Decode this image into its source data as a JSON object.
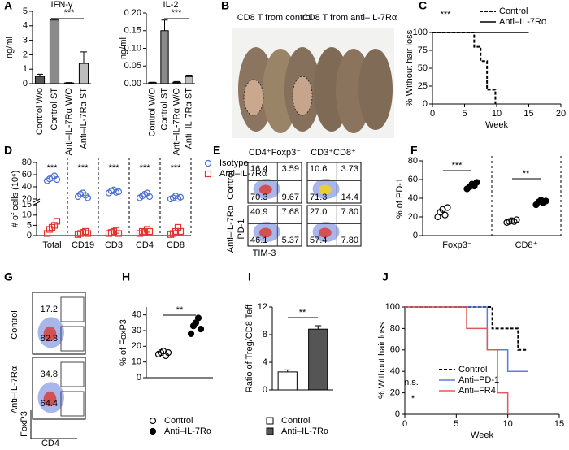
{
  "chart_data": [
    {
      "type": "bar",
      "panel": "A",
      "title": "IFN-γ",
      "ylabel": "ng/ml",
      "categories": [
        "Control W/o",
        "Control ST",
        "Anti–IL-7Rα W/O",
        "Anti–IL-7Rα ST"
      ],
      "values": [
        0.5,
        4.4,
        0.05,
        1.4
      ],
      "errors": [
        0.15,
        0.1,
        0.03,
        0.8
      ],
      "colors": [
        "#555555",
        "#8a8a8a",
        "#333333",
        "#bdbdbd"
      ],
      "ylim": [
        0,
        5
      ],
      "yticks": [
        0,
        1,
        2,
        3,
        4,
        5
      ],
      "annotations": [
        "***"
      ]
    },
    {
      "type": "bar",
      "title": "IL-2",
      "ylabel": "ng/ml",
      "categories": [
        "Control W/O",
        "Control ST",
        "Anti–IL-7Rα W/O",
        "Anti–IL-7Rα ST"
      ],
      "values": [
        0.003,
        0.15,
        0.004,
        0.02
      ],
      "errors": [
        0.001,
        0.03,
        0.002,
        0.004
      ],
      "colors": [
        "#555555",
        "#8a8a8a",
        "#333333",
        "#bdbdbd"
      ],
      "ylim": [
        0,
        0.2
      ],
      "yticks": [
        {
          "value": 0,
          "label": "0.00"
        },
        {
          "value": 0.05,
          "label": "0.05"
        },
        {
          "value": 0.1,
          "label": "0.10"
        },
        {
          "value": 0.15,
          "label": "0.15"
        },
        {
          "value": 0.2,
          "label": "0.20"
        }
      ],
      "annotations": [
        "***"
      ]
    },
    {
      "type": "line",
      "panel": "C",
      "ylabel": "% Without hair loss",
      "xlabel": "Week",
      "xlim": [
        0,
        20
      ],
      "xticks": [
        0,
        5,
        10,
        15,
        20
      ],
      "ylim": [
        0,
        100
      ],
      "yticks": [
        0,
        25,
        50,
        75,
        100
      ],
      "series": [
        {
          "name": "Control",
          "color": "#000000",
          "dash": true,
          "x": [
            0,
            6.5,
            7.5,
            8.5,
            9.8
          ],
          "values": [
            100,
            80,
            60,
            20,
            0
          ]
        },
        {
          "name": "Anti–IL-7Rα",
          "color": "#000000",
          "dash": false,
          "x": [
            0,
            15
          ],
          "values": [
            100,
            100
          ]
        }
      ],
      "annotations": [
        "***"
      ],
      "legend": "upper right"
    },
    {
      "type": "dot",
      "panel": "D",
      "ylabel": "# of cells (10⁶)",
      "categories": [
        "Total",
        "CD19",
        "CD3",
        "CD4",
        "CD8"
      ],
      "ylim": [
        0,
        80
      ],
      "ybreak": [
        15,
        20
      ],
      "yticks": [
        0,
        5,
        10,
        15,
        20,
        40,
        60,
        80
      ],
      "series": [
        {
          "name": "Isotype",
          "color": "#4a6fd0",
          "marker": "circle",
          "filled": false,
          "values": [
            [
              50,
              53,
              55,
              58,
              52
            ],
            [
              24,
              28,
              30,
              26,
              22
            ],
            [
              30,
              33,
              35,
              31,
              32
            ],
            [
              22,
              25,
              28,
              30,
              24
            ],
            [
              20,
              22,
              25,
              21,
              23
            ]
          ]
        },
        {
          "name": "Anti–IL-7Rα",
          "color": "#e0342c",
          "marker": "square",
          "filled": false,
          "values": [
            [
              1,
              3,
              4,
              5,
              7
            ],
            [
              0.5,
              1,
              1.5,
              2,
              1
            ],
            [
              1,
              1.5,
              2,
              2.5,
              1
            ],
            [
              1,
              2,
              1.5,
              3,
              2
            ],
            [
              0.5,
              1,
              2,
              4,
              2
            ]
          ]
        }
      ],
      "annotations": [
        "***",
        "***",
        "***",
        "***",
        "***"
      ],
      "legend": "outside right"
    },
    {
      "type": "dot",
      "panel": "F",
      "ylabel": "% of PD-1",
      "categories": [
        "Foxp3⁻",
        "CD8⁺"
      ],
      "ylim": [
        0,
        80
      ],
      "yticks": [
        0,
        20,
        40,
        60,
        80
      ],
      "series": [
        {
          "color": "#000000",
          "marker": "circle",
          "filled": false,
          "values": [
            [
              20,
              25,
              28,
              22,
              30
            ],
            [
              14,
              15,
              16,
              15,
              17
            ]
          ]
        },
        {
          "color": "#000000",
          "marker": "circle",
          "filled": true,
          "values": [
            [
              50,
              52,
              55,
              53,
              57
            ],
            [
              33,
              36,
              38,
              35,
              37
            ]
          ]
        }
      ],
      "annotations": [
        "***",
        "**"
      ]
    },
    {
      "type": "dot",
      "panel": "H",
      "ylabel": "% of FoxP3",
      "ylim": [
        0,
        45
      ],
      "yticks": [
        0,
        10,
        20,
        30,
        40
      ],
      "series": [
        {
          "name": "Control",
          "color": "#000000",
          "marker": "circle",
          "filled": false,
          "values": [
            [
              15,
              16,
              17,
              14,
              16
            ]
          ]
        },
        {
          "name": "Anti–IL-7Rα",
          "color": "#000000",
          "marker": "circle",
          "filled": true,
          "values": [
            [
              28,
              33,
              35,
              38,
              31
            ]
          ]
        }
      ],
      "annotations": [
        "**"
      ],
      "legend": "below"
    },
    {
      "type": "bar",
      "panel": "I",
      "ylabel": "Ratio of Treg/CD8 Teff",
      "series": [
        {
          "name": "Control",
          "color": "#ffffff",
          "values": [
            2.6
          ],
          "errors": [
            0.3
          ]
        },
        {
          "name": "Anti–IL-7Rα",
          "color": "#555555",
          "values": [
            8.8
          ],
          "errors": [
            0.5
          ]
        }
      ],
      "ylim": [
        0,
        12
      ],
      "yticks": [
        0,
        4,
        8,
        12
      ],
      "annotations": [
        "**"
      ],
      "legend": "below"
    },
    {
      "type": "line",
      "panel": "J",
      "ylabel": "% Without hair loss",
      "xlabel": "Week",
      "xlim": [
        0,
        15
      ],
      "xticks": [
        0,
        5,
        10,
        15
      ],
      "ylim": [
        0,
        100
      ],
      "yticks": [
        0,
        20,
        40,
        60,
        80,
        100
      ],
      "series": [
        {
          "name": "Control",
          "color": "#000000",
          "dash": true,
          "x": [
            0,
            8.5,
            11,
            12
          ],
          "values": [
            100,
            80,
            60,
            60
          ]
        },
        {
          "name": "Anti–PD-1",
          "color": "#5b7fd6",
          "dash": false,
          "x": [
            0,
            8,
            10,
            12
          ],
          "values": [
            100,
            60,
            40,
            40
          ]
        },
        {
          "name": "Anti–FR4",
          "color": "#e05a5a",
          "dash": false,
          "x": [
            0,
            6,
            8,
            9,
            10
          ],
          "values": [
            100,
            80,
            60,
            20,
            0
          ]
        }
      ],
      "annotations": [
        "n.s.",
        "*"
      ],
      "legend": "lower left"
    }
  ],
  "photo": {
    "panel": "B",
    "labels": [
      "CD8 T from control",
      "CD8 T from anti–IL-7Rα"
    ]
  },
  "flow_e": {
    "panel": "E",
    "columns": [
      "CD4⁺Foxp3⁻",
      "CD3⁺CD8⁺"
    ],
    "rows": [
      "Control",
      "Anti–IL-7Rα"
    ],
    "yaxis": "PD-1",
    "xaxis": "TIM-3",
    "quadrants": [
      [
        [
          "16.4",
          "3.59",
          "70.3",
          "9.67"
        ],
        [
          "10.6",
          "3.73",
          "71.3",
          "14.4"
        ]
      ],
      [
        [
          "40.9",
          "7.68",
          "46.1",
          "5.37"
        ],
        [
          "27.0",
          "7.80",
          "57.4",
          "7.80"
        ]
      ]
    ]
  },
  "flow_g": {
    "panel": "G",
    "rows": [
      "Control",
      "Anti–IL-7Rα"
    ],
    "yaxis": "FoxP3",
    "xaxis": "CD4",
    "gates": [
      [
        "17.2",
        "82.3"
      ],
      [
        "34.8",
        "64.4"
      ]
    ]
  }
}
